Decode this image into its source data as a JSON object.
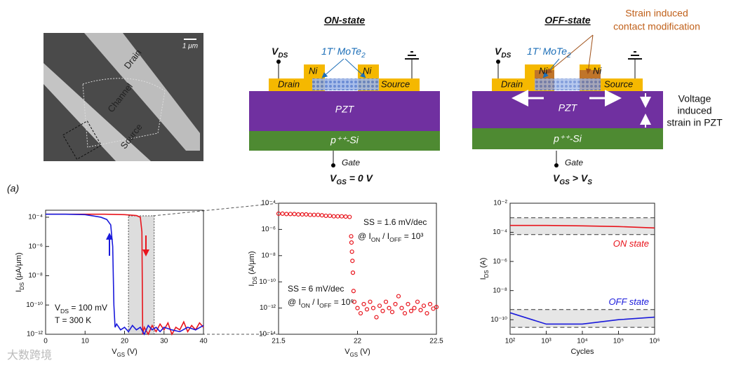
{
  "panel_label": "(a)",
  "watermark": "大数跨境",
  "sem": {
    "labels": [
      "Drain",
      "Channel",
      "Source"
    ],
    "scale_bar": "1 μm"
  },
  "diagrams": [
    {
      "title": "ON-state",
      "vds": [
        "V",
        "DS"
      ],
      "material": [
        "1T’ MoTe",
        "2"
      ],
      "ni": [
        "Ni",
        "Ni"
      ],
      "drain": "Drain",
      "source": "Source",
      "pzt": "PZT",
      "substrate": "p⁺⁺-Si",
      "gate": "Gate",
      "vgs": [
        "V",
        "GS",
        " = 0 V"
      ]
    },
    {
      "title": "OFF-state",
      "vds": [
        "V",
        "DS"
      ],
      "material": [
        "1T’ MoTe",
        "2"
      ],
      "ni": [
        "Ni",
        "Ni"
      ],
      "drain": "Drain",
      "source": "Source",
      "pzt": "PZT",
      "substrate": "p⁺⁺-Si",
      "gate": "Gate",
      "vgs": [
        "V",
        "GS",
        " > V",
        "S"
      ],
      "annotation": [
        "Strain induced",
        "contact modification"
      ],
      "strain_label": [
        "Voltage",
        "induced",
        "strain in PZT"
      ]
    }
  ],
  "chart_data": [
    {
      "type": "line",
      "xlabel": [
        "V",
        "GS",
        " (V)"
      ],
      "ylabel": [
        "I",
        "DS",
        " (μA/μm)"
      ],
      "ylog": true,
      "xlim": [
        0,
        40
      ],
      "ylim": [
        1e-12,
        0.0003
      ],
      "xticks": [
        0,
        10,
        20,
        30,
        40
      ],
      "yticks": [
        {
          "value": 1e-12,
          "label": "10⁻¹²"
        },
        {
          "value": 1e-10,
          "label": "10⁻¹⁰"
        },
        {
          "value": 1e-08,
          "label": "10⁻⁸"
        },
        {
          "value": 1e-06,
          "label": "10⁻⁶"
        },
        {
          "value": 0.0001,
          "label": "10⁻⁴"
        }
      ],
      "highlight": [
        21,
        27.5
      ],
      "series": [
        {
          "color": "#e8141c",
          "x": [
            0,
            5,
            10,
            15,
            20,
            23,
            24,
            24.4,
            24.6,
            25,
            26,
            27,
            28,
            29,
            30,
            31,
            32,
            33,
            34,
            35,
            36,
            37,
            38,
            39,
            40
          ],
          "values": [
            0.00016,
            0.00016,
            0.00016,
            0.00016,
            0.00015,
            0.00013,
            0.0001,
            1e-05,
            1e-12,
            3e-12,
            1e-12,
            4e-12,
            1.5e-12,
            5e-12,
            2e-12,
            6e-12,
            1e-12,
            3e-12,
            2e-12,
            7e-12,
            1.5e-12,
            4e-12,
            2e-12,
            6e-12,
            3e-12
          ]
        },
        {
          "color": "#1a1adb",
          "x": [
            0,
            5,
            10,
            14,
            15.5,
            16.5,
            17,
            17.3,
            17.6,
            18,
            19,
            20,
            21,
            22,
            23,
            24,
            25,
            26,
            27,
            28,
            29,
            30,
            32,
            34,
            36,
            38,
            40
          ],
          "values": [
            0.00016,
            0.00016,
            0.00015,
            0.0001,
            7e-05,
            3e-05,
            1e-06,
            1e-10,
            3e-12,
            5e-12,
            2e-12,
            3e-12,
            1.5e-12,
            4e-12,
            2e-12,
            3e-12,
            1e-12,
            4e-12,
            2e-12,
            3e-12,
            1.5e-12,
            3e-12,
            2e-12,
            1.5e-12,
            3e-12,
            2e-12,
            4e-12
          ]
        }
      ],
      "annotations": [
        [
          "V",
          "DS",
          " = 100 mV"
        ],
        "T = 300 K"
      ]
    },
    {
      "type": "scatter",
      "xlabel": [
        "V",
        "GS",
        " (V)"
      ],
      "ylabel": [
        "I",
        "DS",
        " (A/μm)"
      ],
      "ylog": true,
      "xlim": [
        21.5,
        22.5
      ],
      "ylim": [
        1e-14,
        0.0001
      ],
      "xticks": [
        21.5,
        22,
        22.5
      ],
      "yticks": [
        {
          "value": 1e-14,
          "label": "10⁻¹⁴"
        },
        {
          "value": 1e-12,
          "label": "10⁻¹²"
        },
        {
          "value": 1e-10,
          "label": "10⁻¹⁰"
        },
        {
          "value": 1e-08,
          "label": "10⁻⁸"
        },
        {
          "value": 1e-06,
          "label": "10⁻⁶"
        },
        {
          "value": 0.0001,
          "label": "10⁻⁴"
        }
      ],
      "series": [
        {
          "color": "#e8141c",
          "x": [
            21.5,
            21.525,
            21.55,
            21.575,
            21.6,
            21.625,
            21.65,
            21.675,
            21.7,
            21.725,
            21.75,
            21.775,
            21.8,
            21.825,
            21.85,
            21.875,
            21.9,
            21.925,
            21.95,
            21.96,
            21.962,
            21.965,
            21.968,
            21.971,
            21.975,
            21.98,
            22,
            22.02,
            22.04,
            22.06,
            22.08,
            22.1,
            22.12,
            22.14,
            22.16,
            22.18,
            22.2,
            22.22,
            22.24,
            22.26,
            22.28,
            22.3,
            22.32,
            22.34,
            22.36,
            22.38,
            22.4,
            22.42,
            22.44,
            22.46,
            22.48,
            22.5
          ],
          "values": [
            1.6e-05,
            1.6e-05,
            1.5e-05,
            1.5e-05,
            1.5e-05,
            1.4e-05,
            1.4e-05,
            1.4e-05,
            1.3e-05,
            1.3e-05,
            1.3e-05,
            1.2e-05,
            1.1e-05,
            1.1e-05,
            1e-05,
            1e-05,
            1e-05,
            9.5e-06,
            9e-06,
            3e-07,
            1e-07,
            2e-08,
            4e-09,
            5e-10,
            2e-11,
            3e-12,
            1e-12,
            4e-13,
            2e-12,
            8e-13,
            3e-12,
            1e-12,
            2e-13,
            1.5e-12,
            6e-13,
            3e-12,
            1e-12,
            5e-13,
            2e-12,
            8e-12,
            1e-12,
            4e-13,
            2e-12,
            6e-13,
            1e-12,
            3e-12,
            7e-13,
            1.5e-12,
            4e-13,
            2e-12,
            9e-13,
            1.2e-12
          ]
        }
      ],
      "annotations": [
        "SS = 1.6 mV/dec",
        [
          "@ I",
          "ON",
          " / I",
          "OFF",
          " = 10³"
        ],
        "SS = 6 mV/dec",
        [
          "@ I",
          "ON",
          " / I",
          "OFF",
          " = 10⁶"
        ]
      ]
    },
    {
      "type": "line",
      "xlabel": "Cycles",
      "ylabel": [
        "I",
        "DS",
        " (A)"
      ],
      "xlog": true,
      "ylog": true,
      "xlim": [
        100,
        1000000
      ],
      "ylim": [
        1e-11,
        0.01
      ],
      "xticks": [
        {
          "value": 100,
          "label": "10²"
        },
        {
          "value": 1000,
          "label": "10³"
        },
        {
          "value": 10000,
          "label": "10⁴"
        },
        {
          "value": 100000,
          "label": "10⁵"
        },
        {
          "value": 1000000,
          "label": "10⁶"
        }
      ],
      "yticks": [
        {
          "value": 1e-10,
          "label": "10⁻¹⁰"
        },
        {
          "value": 1e-08,
          "label": "10⁻⁸"
        },
        {
          "value": 1e-06,
          "label": "10⁻⁶"
        },
        {
          "value": 0.0001,
          "label": "10⁻⁴"
        },
        {
          "value": 0.01,
          "label": "10⁻²"
        }
      ],
      "bands": [
        [
          7e-05,
          0.001
        ],
        [
          3e-11,
          5e-10
        ]
      ],
      "series": [
        {
          "name": "ON state",
          "color": "#e8141c",
          "x": [
            100,
            1000,
            10000,
            100000,
            1000000
          ],
          "values": [
            0.0003,
            0.0003,
            0.00028,
            0.00025,
            0.0002
          ]
        },
        {
          "name": "OFF state",
          "color": "#1a1adb",
          "x": [
            100,
            1000,
            10000,
            100000,
            1000000
          ],
          "values": [
            3e-10,
            5e-11,
            5e-11,
            1e-10,
            1.5e-10
          ]
        }
      ]
    }
  ]
}
